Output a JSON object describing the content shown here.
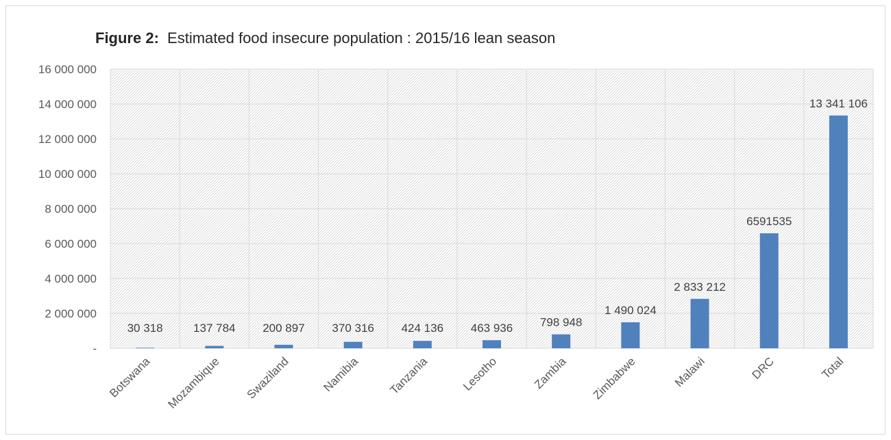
{
  "chart_data": {
    "type": "bar",
    "title_prefix": "Figure 2:",
    "title": "Estimated food insecure population : 2015/16 lean season",
    "categories": [
      "Botswana",
      "Mozambique",
      "Swaziland",
      "Namibia",
      "Tanzania",
      "Lesotho",
      "Zambia",
      "Zimbabwe",
      "Malawi",
      "DRC",
      "Total"
    ],
    "values": [
      30318,
      137784,
      200897,
      370316,
      424136,
      463936,
      798948,
      1490024,
      2833212,
      6591535,
      13341106
    ],
    "data_labels": [
      "30 318",
      "137 784",
      "200 897",
      "370 316",
      "424 136",
      "463 936",
      "798 948",
      "1 490 024",
      "2 833 212",
      "6591535",
      "13 341 106"
    ],
    "y_ticks": [
      "-",
      "2 000 000",
      "4 000 000",
      "6 000 000",
      "8 000 000",
      "10 000 000",
      "12 000 000",
      "14 000 000",
      "16 000 000"
    ],
    "ylim": [
      0,
      16000000
    ],
    "xlabel": "",
    "ylabel": "",
    "grid": true,
    "bar_color": "#4f81bd"
  }
}
